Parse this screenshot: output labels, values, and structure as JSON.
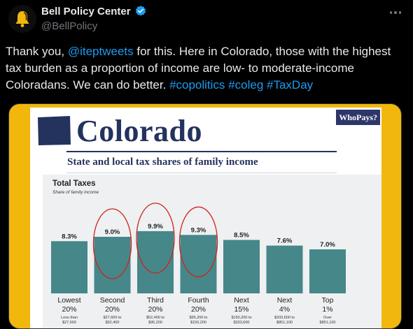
{
  "author": {
    "display_name": "Bell Policy Center",
    "handle": "@BellPolicy"
  },
  "icons": {
    "avatar": "bell-logo-icon",
    "verified": "verified-badge-icon",
    "more": "more-options-icon"
  },
  "colors": {
    "link": "#1d9bf0",
    "bar": "#46878a",
    "circle": "#d0221e",
    "frame": "#f2b70d",
    "navy": "#24325e"
  },
  "tweet": {
    "text_1": "Thank you, ",
    "mention": "@iteptweets",
    "text_2": " for this. Here in Colorado, those with the highest tax burden as a proportion of income are low- to moderate-income Coloradans. We can do better. ",
    "hashtag_1": "#copolitics",
    "space_1": " ",
    "hashtag_2": "#coleg",
    "space_2": " ",
    "hashtag_3": "#TaxDay"
  },
  "media": {
    "state": "Colorado",
    "badge": "WhoPays?",
    "subtitle": "State and local tax shares of family income"
  },
  "chart_data": {
    "type": "bar",
    "title": "Total Taxes",
    "subtitle": "Share of family income",
    "categories": [
      "Lowest 20%",
      "Second 20%",
      "Third 20%",
      "Fourth 20%",
      "Next 15%",
      "Next 4%",
      "Top 1%"
    ],
    "groups": [
      {
        "name": "Lowest",
        "pct": "20%",
        "range": "Less than\n$27,600"
      },
      {
        "name": "Second",
        "pct": "20%",
        "range": "$27,600 to\n$52,400"
      },
      {
        "name": "Third",
        "pct": "20%",
        "range": "$52,400 to\n$95,200"
      },
      {
        "name": "Fourth",
        "pct": "20%",
        "range": "$95,200 to\n$150,200"
      },
      {
        "name": "Next",
        "pct": "15%",
        "range": "$150,200 to\n$333,600"
      },
      {
        "name": "Next",
        "pct": "4%",
        "range": "$333,600 to\n$851,100"
      },
      {
        "name": "Top",
        "pct": "1%",
        "range": "Over\n$851,100"
      }
    ],
    "values": [
      8.3,
      9.0,
      9.9,
      9.3,
      8.5,
      7.6,
      7.0
    ],
    "labels": [
      "8.3%",
      "9.0%",
      "9.9%",
      "9.3%",
      "8.5%",
      "7.6%",
      "7.0%"
    ],
    "highlighted": [
      "Second 20%",
      "Third 20%",
      "Fourth 20%"
    ],
    "ylim": [
      0,
      10
    ]
  }
}
